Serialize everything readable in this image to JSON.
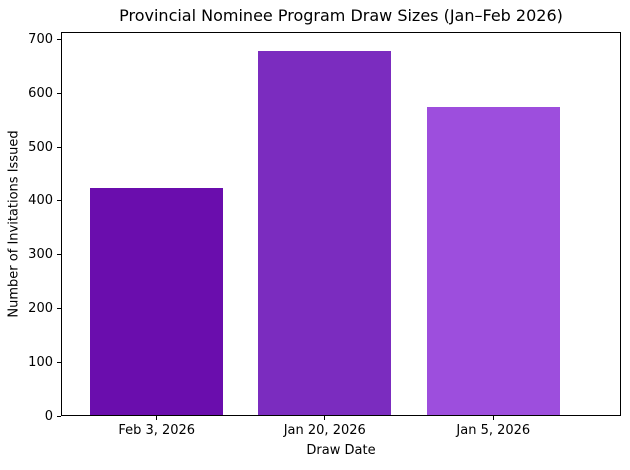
{
  "figure": {
    "background_color": "#ffffff",
    "spine_color": "#000000",
    "text_color": "#000000"
  },
  "chart_data": {
    "type": "bar",
    "title": "Provincial Nominee Program Draw Sizes (Jan–Feb 2026)",
    "xlabel": "Draw Date",
    "ylabel": "Number of Invitations Issued",
    "categories": [
      "Feb 3, 2026",
      "Jan 20, 2026",
      "Jan 5, 2026"
    ],
    "values": [
      425,
      680,
      575
    ],
    "bar_colors": [
      "#6A0DAD",
      "#7B2CBF",
      "#9D4EDD"
    ],
    "yticks": [
      0,
      100,
      200,
      300,
      400,
      500,
      600,
      700
    ],
    "ylim": [
      0,
      714
    ],
    "grid": false,
    "legend": null
  }
}
